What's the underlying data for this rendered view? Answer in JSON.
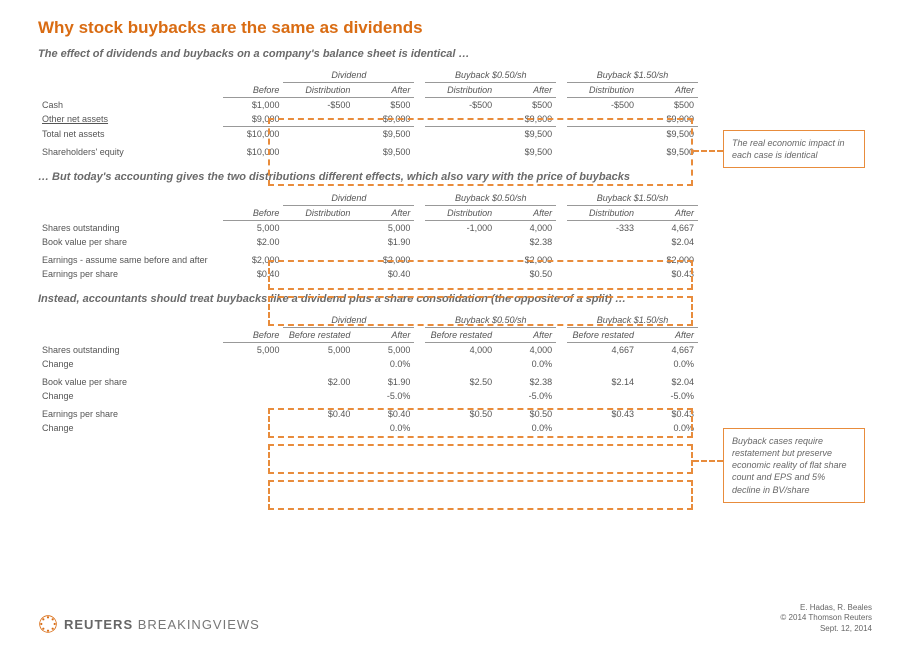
{
  "title": "Why stock buybacks are the same as dividends",
  "colors": {
    "accent": "#d96c13",
    "dash": "#e88c3c",
    "text": "#555555",
    "bg": "#ffffff"
  },
  "section1": {
    "subtitle": "The effect of dividends and buybacks on a company's balance sheet is identical …",
    "headers": {
      "before": "Before",
      "groups": [
        "Dividend",
        "Buyback $0.50/sh",
        "Buyback $1.50/sh"
      ],
      "dist": "Distribution",
      "after": "After"
    },
    "rows": [
      {
        "label": "Cash",
        "before": "$1,000",
        "d_dist": "-$500",
        "d_after": "$500",
        "b1_dist": "-$500",
        "b1_after": "$500",
        "b2_dist": "-$500",
        "b2_after": "$500"
      },
      {
        "label": "Other net assets",
        "before": "$9,000",
        "d_dist": "",
        "d_after": "$9,000",
        "b1_dist": "",
        "b1_after": "$9,000",
        "b2_dist": "",
        "b2_after": "$9,000",
        "underline": true
      },
      {
        "label": "Total net assets",
        "before": "$10,000",
        "d_dist": "",
        "d_after": "$9,500",
        "b1_dist": "",
        "b1_after": "$9,500",
        "b2_dist": "",
        "b2_after": "$9,500"
      },
      {
        "label": "Shareholders' equity",
        "before": "$10,000",
        "d_dist": "",
        "d_after": "$9,500",
        "b1_dist": "",
        "b1_after": "$9,500",
        "b2_dist": "",
        "b2_after": "$9,500",
        "gap": true
      }
    ],
    "callout": "The real economic impact in each case is identical"
  },
  "section2": {
    "subtitle": "… But today's accounting gives the two distributions different effects, which also vary with the price of buybacks",
    "rows": [
      {
        "label": "Shares outstanding",
        "before": "5,000",
        "d_dist": "",
        "d_after": "5,000",
        "b1_dist": "-1,000",
        "b1_after": "4,000",
        "b2_dist": "-333",
        "b2_after": "4,667"
      },
      {
        "label": "Book value per share",
        "before": "$2.00",
        "d_dist": "",
        "d_after": "$1.90",
        "b1_dist": "",
        "b1_after": "$2.38",
        "b2_dist": "",
        "b2_after": "$2.04"
      },
      {
        "label": "Earnings - assume same before and after",
        "before": "$2,000",
        "d_dist": "",
        "d_after": "$2,000",
        "b1_dist": "",
        "b1_after": "$2,000",
        "b2_dist": "",
        "b2_after": "$2,000",
        "gap": true
      },
      {
        "label": "Earnings per share",
        "before": "$0.40",
        "d_dist": "",
        "d_after": "$0.40",
        "b1_dist": "",
        "b1_after": "$0.50",
        "b2_dist": "",
        "b2_after": "$0.43"
      }
    ]
  },
  "section3": {
    "subtitle": "Instead, accountants should treat buybacks like a dividend plus a share consolidation (the opposite of a split) …",
    "headers": {
      "br": "Before restated"
    },
    "rows": [
      {
        "label": "Shares outstanding",
        "before": "5,000",
        "d_br": "5,000",
        "d_after": "5,000",
        "b1_br": "4,000",
        "b1_after": "4,000",
        "b2_br": "4,667",
        "b2_after": "4,667"
      },
      {
        "label": "Change",
        "before": "",
        "d_br": "",
        "d_after": "0.0%",
        "b1_br": "",
        "b1_after": "0.0%",
        "b2_br": "",
        "b2_after": "0.0%"
      },
      {
        "label": "Book value per share",
        "before": "",
        "d_br": "$2.00",
        "d_after": "$1.90",
        "b1_br": "$2.50",
        "b1_after": "$2.38",
        "b2_br": "$2.14",
        "b2_after": "$2.04",
        "gap": true
      },
      {
        "label": "Change",
        "before": "",
        "d_br": "",
        "d_after": "-5.0%",
        "b1_br": "",
        "b1_after": "-5.0%",
        "b2_br": "",
        "b2_after": "-5.0%"
      },
      {
        "label": "Earnings per share",
        "before": "",
        "d_br": "$0.40",
        "d_after": "$0.40",
        "b1_br": "$0.50",
        "b1_after": "$0.50",
        "b2_br": "$0.43",
        "b2_after": "$0.43",
        "gap": true
      },
      {
        "label": "Change",
        "before": "",
        "d_br": "",
        "d_after": "0.0%",
        "b1_br": "",
        "b1_after": "0.0%",
        "b2_br": "",
        "b2_after": "0.0%"
      }
    ],
    "callout": "Buyback cases require restatement but preserve economic reality of flat share count and EPS and 5% decline in BV/share"
  },
  "footer": {
    "brand1": "REUTERS",
    "brand2": "BREAKINGVIEWS",
    "authors": "E. Hadas, R. Beales",
    "copyright": "© 2014 Thomson Reuters",
    "date": "Sept. 12, 2014"
  }
}
